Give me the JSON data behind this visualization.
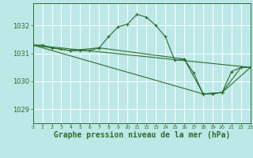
{
  "background_color": "#bde8e8",
  "grid_color": "#ffffff",
  "line_color": "#2d6e2d",
  "xlabel": "Graphe pression niveau de la mer (hPa)",
  "xlabel_fontsize": 7,
  "ytick_fontsize": 6,
  "xtick_fontsize": 4.5,
  "yticks": [
    1029,
    1030,
    1031,
    1032
  ],
  "xticks": [
    0,
    1,
    2,
    3,
    4,
    5,
    6,
    7,
    8,
    9,
    10,
    11,
    12,
    13,
    14,
    15,
    16,
    17,
    18,
    19,
    20,
    21,
    22,
    23
  ],
  "ylim": [
    1028.5,
    1032.8
  ],
  "xlim": [
    0,
    23
  ],
  "lines": [
    {
      "x": [
        0,
        1,
        2,
        3,
        4,
        5,
        6,
        7,
        8,
        9,
        10,
        11,
        12,
        13,
        14,
        15,
        16,
        17,
        18,
        19,
        20,
        21,
        22,
        23
      ],
      "y": [
        1031.3,
        1031.3,
        1031.2,
        1031.15,
        1031.1,
        1031.1,
        1031.1,
        1031.2,
        1031.6,
        1031.95,
        1032.05,
        1032.4,
        1032.3,
        1032.0,
        1031.6,
        1030.75,
        1030.8,
        1030.3,
        1029.55,
        1029.55,
        1029.6,
        1030.35,
        1030.5,
        1030.5
      ]
    },
    {
      "x": [
        0,
        4,
        7,
        16,
        18,
        20,
        22,
        23
      ],
      "y": [
        1031.3,
        1031.1,
        1031.2,
        1030.8,
        1029.55,
        1029.6,
        1030.5,
        1030.5
      ]
    },
    {
      "x": [
        0,
        18,
        20,
        23
      ],
      "y": [
        1031.3,
        1029.55,
        1029.6,
        1030.5
      ]
    },
    {
      "x": [
        0,
        23
      ],
      "y": [
        1031.3,
        1030.5
      ]
    }
  ]
}
